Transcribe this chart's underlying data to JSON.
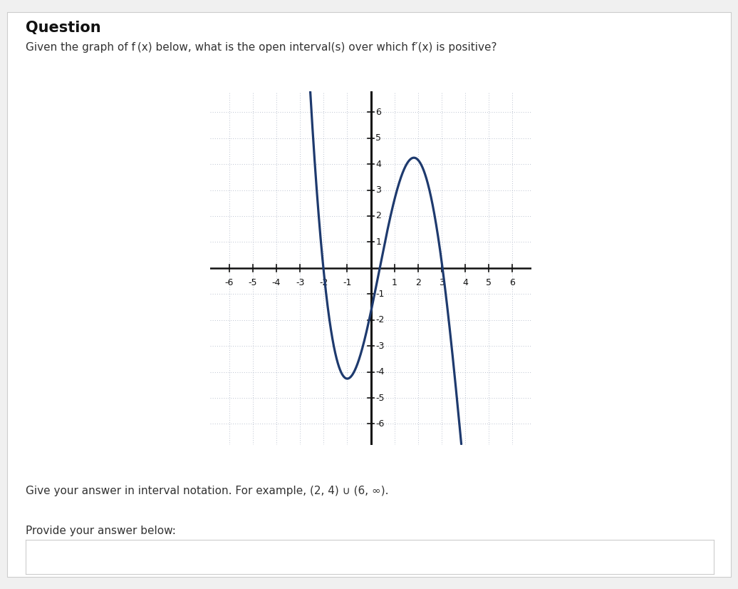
{
  "title": "Question",
  "subtitle": "Given the graph of f (x) below, what is the open interval(s) over which f′(x) is positive?",
  "hint_text": "Give your answer in interval notation. For example, (2, 4) ∪ (6, ∞).",
  "answer_label": "Provide your answer below:",
  "page_bg": "#f0f0f0",
  "content_bg": "#ffffff",
  "graph_xlim": [
    -6.8,
    6.8
  ],
  "graph_ylim": [
    -6.8,
    6.8
  ],
  "grid_color": "#b0b8c8",
  "axis_color": "#111111",
  "curve_color": "#1e3a6e",
  "curve_linewidth": 2.3,
  "tick_vals": [
    -6,
    -5,
    -4,
    -3,
    -2,
    -1,
    1,
    2,
    3,
    4,
    5,
    6
  ],
  "xp": [
    -2.55,
    -2.0,
    -0.5,
    0.32,
    2.0,
    3.05,
    3.8
  ],
  "yp": [
    6.5,
    0.0,
    -3.75,
    0.0,
    4.0,
    0.0,
    -6.5
  ]
}
